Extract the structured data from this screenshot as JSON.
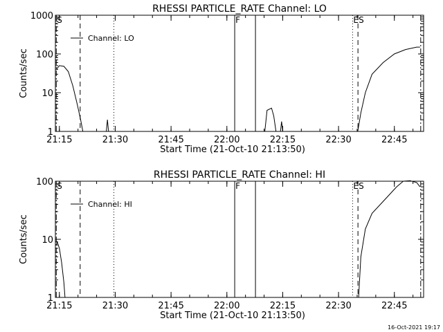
{
  "timestamp": "16-Oct-2021 19:17",
  "chart_data": [
    {
      "type": "line",
      "title": "RHESSI  PARTICLE_RATE  Channel: LO",
      "xlabel": "Start Time (21-Oct-10 21:13:50)",
      "ylabel": "Counts/sec",
      "yscale": "log",
      "xlim": [
        21.232,
        22.881
      ],
      "ylim": [
        1,
        1000
      ],
      "x_tick_labels": [
        "21:15",
        "21:30",
        "21:45",
        "22:00",
        "22:15",
        "22:30",
        "22:45"
      ],
      "x_tick_values": [
        21.25,
        21.5,
        21.75,
        22.0,
        22.25,
        22.5,
        22.75
      ],
      "y_tick_labels": [
        "1",
        "10",
        "100",
        "1000"
      ],
      "y_tick_values": [
        1,
        10,
        100,
        1000
      ],
      "legend": {
        "position": "top-left",
        "entries": [
          "Channel: LO"
        ]
      },
      "series": [
        {
          "name": "Channel: LO",
          "segments": [
            {
              "x": [
                21.236,
                21.25,
                21.27,
                21.29,
                21.31,
                21.33,
                21.345,
                21.355
              ],
              "y": [
                40,
                50,
                48,
                35,
                15,
                5,
                2,
                1
              ]
            },
            {
              "x": [
                21.46,
                21.465,
                21.47
              ],
              "y": [
                1,
                2,
                1
              ]
            },
            {
              "x": [
                22.17,
                22.18,
                22.2,
                22.21,
                22.22
              ],
              "y": [
                1,
                3.5,
                4,
                2.5,
                1
              ]
            },
            {
              "x": [
                22.24,
                22.245,
                22.25
              ],
              "y": [
                1,
                1.8,
                1
              ]
            },
            {
              "x": [
                22.586,
                22.6,
                22.62,
                22.65,
                22.7,
                22.75,
                22.8,
                22.85,
                22.865
              ],
              "y": [
                1,
                3,
                10,
                30,
                60,
                100,
                130,
                150,
                150
              ]
            }
          ]
        }
      ],
      "markers": [
        {
          "x": 21.236,
          "style": "dashdot",
          "label": "S"
        },
        {
          "x": 21.343,
          "style": "dashed",
          "label": ""
        },
        {
          "x": 21.494,
          "style": "dotted",
          "label": ""
        },
        {
          "x": 22.035,
          "style": "solid",
          "label": "F"
        },
        {
          "x": 22.128,
          "style": "solid",
          "label": ""
        },
        {
          "x": 22.563,
          "style": "dotted",
          "label": "E"
        },
        {
          "x": 22.587,
          "style": "dashed",
          "label": "S"
        },
        {
          "x": 22.868,
          "style": "dashdot",
          "label": ""
        }
      ]
    },
    {
      "type": "line",
      "title": "RHESSI  PARTICLE_RATE  Channel: HI",
      "xlabel": "Start Time (21-Oct-10 21:13:50)",
      "ylabel": "Counts/sec",
      "yscale": "log",
      "xlim": [
        21.232,
        22.881
      ],
      "ylim": [
        1,
        100
      ],
      "x_tick_labels": [
        "21:15",
        "21:30",
        "21:45",
        "22:00",
        "22:15",
        "22:30",
        "22:45"
      ],
      "x_tick_values": [
        21.25,
        21.5,
        21.75,
        22.0,
        22.25,
        22.5,
        22.75
      ],
      "y_tick_labels": [
        "1",
        "10",
        "100"
      ],
      "y_tick_values": [
        1,
        10,
        100
      ],
      "legend": {
        "position": "top-left",
        "entries": [
          "Channel: HI"
        ]
      },
      "series": [
        {
          "name": "Channel: HI",
          "segments": [
            {
              "x": [
                21.236,
                21.24,
                21.25,
                21.26,
                21.27,
                21.275
              ],
              "y": [
                8,
                9,
                7,
                4,
                1.8,
                1
              ]
            },
            {
              "x": [
                22.59,
                22.6,
                22.62,
                22.65,
                22.7,
                22.73,
                22.76,
                22.79,
                22.82,
                22.85,
                22.865
              ],
              "y": [
                1,
                5,
                15,
                28,
                45,
                60,
                80,
                100,
                102,
                95,
                80
              ]
            }
          ]
        }
      ],
      "markers": [
        {
          "x": 21.236,
          "style": "dashdot",
          "label": "S"
        },
        {
          "x": 21.343,
          "style": "dashed",
          "label": ""
        },
        {
          "x": 21.494,
          "style": "dotted",
          "label": ""
        },
        {
          "x": 22.035,
          "style": "solid",
          "label": "F"
        },
        {
          "x": 22.128,
          "style": "solid",
          "label": ""
        },
        {
          "x": 22.563,
          "style": "dotted",
          "label": "E"
        },
        {
          "x": 22.587,
          "style": "dashed",
          "label": "S"
        },
        {
          "x": 22.868,
          "style": "dashdot",
          "label": ""
        }
      ]
    }
  ]
}
